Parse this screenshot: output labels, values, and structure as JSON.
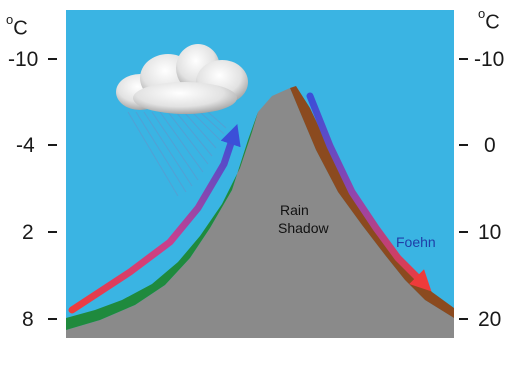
{
  "left_axis": {
    "unit_sup": "o",
    "unit": "C",
    "ticks": [
      "-10",
      "-4",
      "2",
      "8"
    ]
  },
  "right_axis": {
    "unit_sup": "o",
    "unit": "C",
    "ticks": [
      "-10",
      "0",
      "10",
      "20"
    ]
  },
  "labels": {
    "rain_shadow_line1": "Rain",
    "rain_shadow_line2": "Shadow",
    "foehn": "Foehn"
  },
  "colors": {
    "sky": "#3ab4e3",
    "mountain": "#8a8a8a",
    "windward_vegetation": "#1f8a3d",
    "leeward_soil": "#8b4a1f",
    "warm_air": "#ee3b3b",
    "cool_air": "#3b4fd8",
    "rain": "#5aa0d8",
    "cloud": "#e8e8e8",
    "foehn_text": "#1f3fa8"
  },
  "icons": {
    "cloud": "rain-cloud-icon"
  }
}
